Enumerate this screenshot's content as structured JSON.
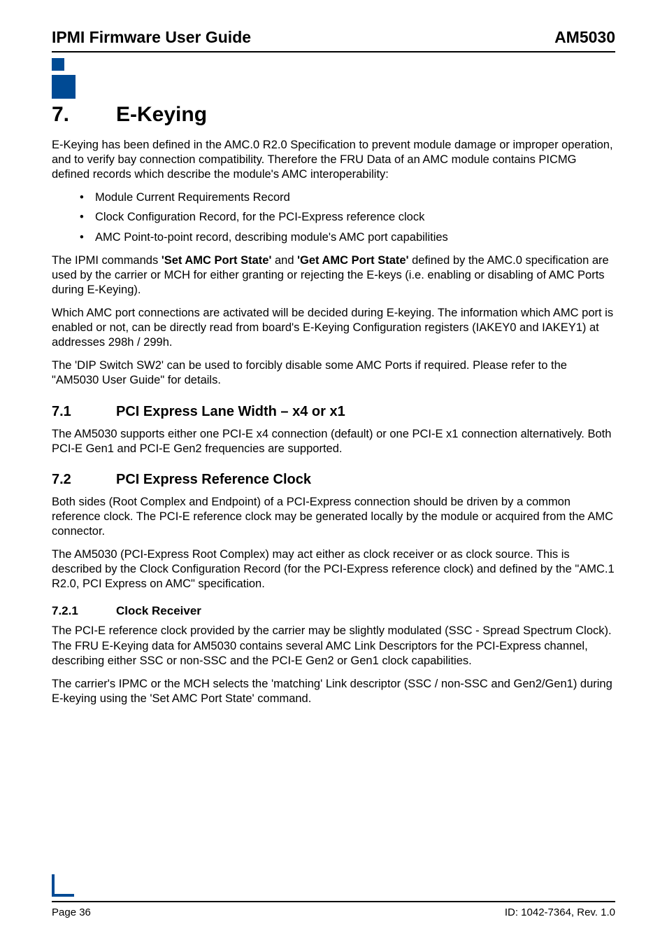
{
  "colors": {
    "brand_blue": "#004a94",
    "text": "#000000",
    "background": "#ffffff",
    "rule": "#000000"
  },
  "typography": {
    "body_font": "Arial, Helvetica, sans-serif",
    "header_fontsize_pt": 17,
    "chapter_fontsize_pt": 22,
    "h2_fontsize_pt": 15,
    "h3_fontsize_pt": 13,
    "body_fontsize_pt": 12.5,
    "footer_fontsize_pt": 11
  },
  "header": {
    "left": "IPMI Firmware User Guide",
    "right": "AM5030"
  },
  "chapter": {
    "number": "7.",
    "title": "E-Keying"
  },
  "intro": {
    "para1": "E-Keying has been defined in the AMC.0 R2.0 Specification to prevent module damage or improper operation, and to verify bay connection compatibility. Therefore the FRU Data of an AMC module contains PICMG defined records which describe the module's AMC interoperability:",
    "bullets": [
      "Module Current Requirements Record",
      "Clock Configuration Record, for the PCI-Express reference clock",
      "AMC Point-to-point record, describing module's AMC port capabilities"
    ],
    "para2_pre": "The IPMI commands ",
    "para2_b1": "'Set AMC Port State'",
    "para2_mid": " and ",
    "para2_b2": "'Get AMC Port State'",
    "para2_post": " defined by the AMC.0 specification are used by the carrier or MCH for either granting or rejecting the E-keys (i.e. enabling or disabling of AMC Ports during E-Keying).",
    "para3": "Which AMC port connections are activated will be decided during E-keying. The information which AMC port is enabled or not, can be directly read from board's E-Keying Configuration registers (IAKEY0 and IAKEY1) at addresses 298h / 299h.",
    "para4": "The 'DIP Switch SW2' can be used to forcibly disable some AMC Ports if required. Please refer to the \"AM5030 User Guide\" for details."
  },
  "section71": {
    "number": "7.1",
    "title": "PCI Express Lane Width – x4 or x1",
    "para1": "The AM5030 supports either one PCI-E x4 connection (default) or one PCI-E x1 connection alternatively. Both PCI-E Gen1 and PCI-E Gen2 frequencies are supported."
  },
  "section72": {
    "number": "7.2",
    "title": "PCI Express Reference Clock",
    "para1": "Both sides (Root Complex and Endpoint) of a PCI-Express connection should be driven by a common reference clock. The PCI-E reference clock may be generated locally by the module or acquired from the AMC connector.",
    "para2": "The AM5030 (PCI-Express Root Complex) may act either as clock receiver or as clock source. This is described by the Clock Configuration Record (for the PCI-Express reference clock) and defined by the \"AMC.1 R2.0, PCI Express on AMC\" specification."
  },
  "section721": {
    "number": "7.2.1",
    "title": "Clock Receiver",
    "para1": "The PCI-E reference clock provided by the carrier may be slightly modulated (SSC - Spread Spectrum Clock). The FRU E-Keying data for AM5030 contains several AMC Link Descriptors for the PCI-Express channel, describing either SSC or non-SSC and the PCI-E Gen2 or Gen1 clock capabilities.",
    "para2": "The carrier's IPMC or the MCH selects the 'matching' Link descriptor (SSC / non-SSC and Gen2/Gen1) during E-keying using the 'Set AMC Port State' command."
  },
  "footer": {
    "left": "Page 36",
    "right": "ID: 1042-7364, Rev. 1.0"
  }
}
